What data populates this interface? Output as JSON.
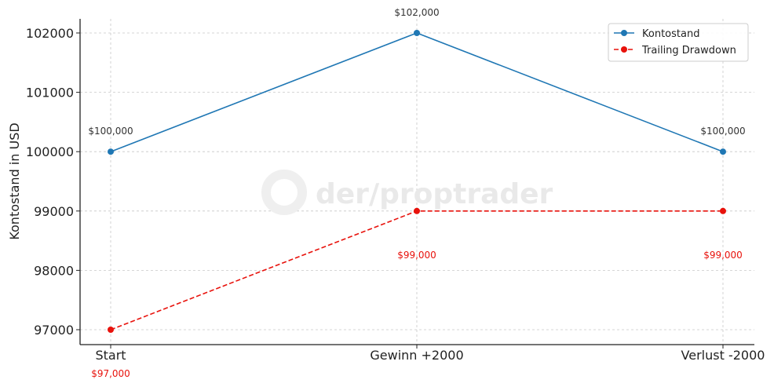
{
  "chart_data": {
    "type": "line",
    "title": "",
    "xlabel": "",
    "ylabel": "Kontostand in USD",
    "categories": [
      "Start",
      "Gewinn +2000",
      "Verlust -2000"
    ],
    "ylim": [
      96750,
      102250
    ],
    "yticks": [
      97000,
      98000,
      99000,
      100000,
      101000,
      102000
    ],
    "grid": true,
    "legend_position": "top-right",
    "series": [
      {
        "name": "Kontostand",
        "values": [
          100000,
          102000,
          100000
        ],
        "labels": [
          "$100,000",
          "$102,000",
          "$100,000"
        ],
        "color": "#1f77b4",
        "line_style": "solid",
        "marker": "circle",
        "label_position": "above"
      },
      {
        "name": "Trailing Drawdown",
        "values": [
          97000,
          99000,
          99000
        ],
        "labels": [
          "$97,000",
          "$99,000",
          "$99,000"
        ],
        "color": "#e8120c",
        "line_style": "dashed",
        "marker": "circle",
        "label_position": "below"
      }
    ]
  },
  "watermark": {
    "text": "der/proptrader"
  }
}
